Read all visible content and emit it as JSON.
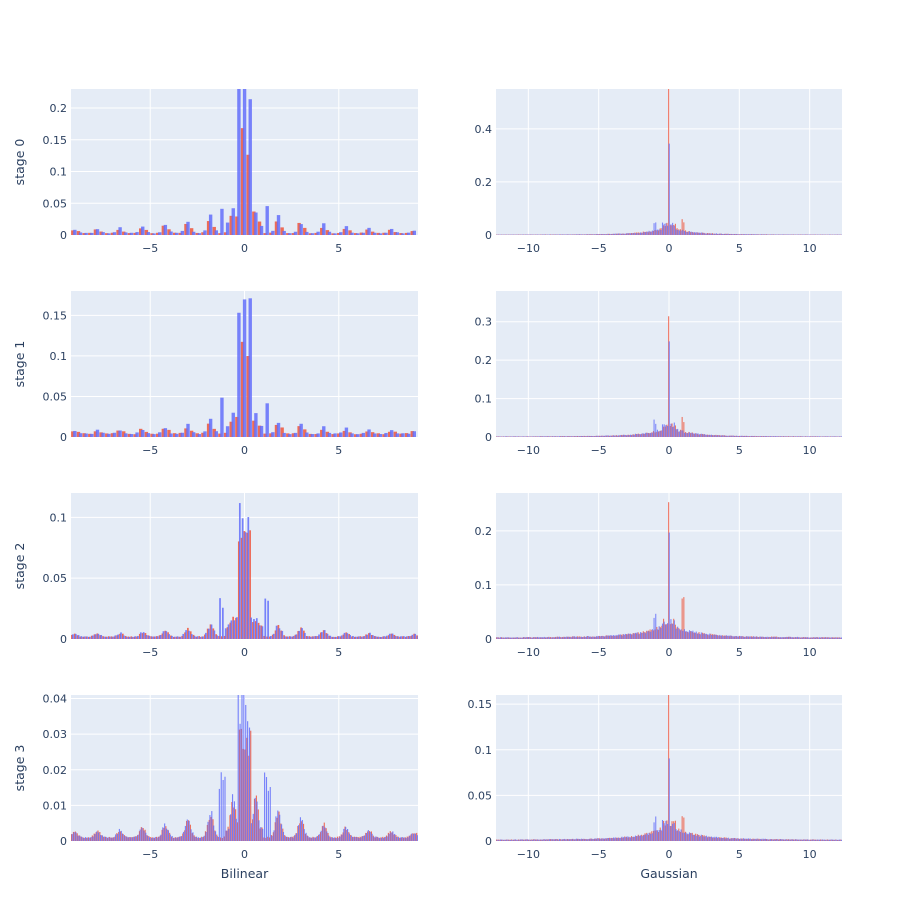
{
  "colors": {
    "series_a": "#EF553B",
    "series_b": "#636EFA",
    "plot_bg": "#E5ECF6",
    "grid": "#FFFFFF",
    "text": "#2a3f5f"
  },
  "chart_data": [
    {
      "type": "bar",
      "row_label": "stage 0",
      "xlabel": "",
      "xlim": [
        -9.2,
        9.2
      ],
      "ylim": [
        0,
        0.23
      ],
      "xticks": [
        -5,
        0,
        5
      ],
      "yticks": [
        0,
        0.05,
        0.1,
        0.15,
        0.2
      ],
      "ytick_labels": [
        "0",
        "0.05",
        "0.1",
        "0.15",
        "0.2"
      ],
      "bin_width": 0.3,
      "peak_a": 0.145,
      "peak_b": 0.218,
      "peak_b2": 0.215,
      "floor": 0.003,
      "spike_a": 0.055,
      "spike_b": 0.045
    },
    {
      "type": "bar",
      "row_label": "",
      "xlabel": "",
      "xlim": [
        -12.3,
        12.3
      ],
      "ylim": [
        0,
        0.55
      ],
      "xticks": [
        -10,
        -5,
        0,
        5,
        10
      ],
      "yticks": [
        0,
        0.2,
        0.4
      ],
      "ytick_labels": [
        "0",
        "0.2",
        "0.4"
      ],
      "bin_width": 0.12,
      "peak_a": 0.52,
      "peak_b": 0.43,
      "floor": 0.001,
      "spike_a": 0.055,
      "spike_b": 0.05
    },
    {
      "type": "bar",
      "row_label": "stage 1",
      "xlabel": "",
      "xlim": [
        -9.2,
        9.2
      ],
      "ylim": [
        0,
        0.18
      ],
      "xticks": [
        -5,
        0,
        5
      ],
      "yticks": [
        0,
        0.05,
        0.1,
        0.15
      ],
      "ytick_labels": [
        "0",
        "0.05",
        "0.1",
        "0.15"
      ],
      "bin_width": 0.3,
      "peak_a": 0.12,
      "peak_b": 0.172,
      "peak_b2": 0.157,
      "floor": 0.004,
      "spike_a": 0.035,
      "spike_b": 0.045
    },
    {
      "type": "bar",
      "row_label": "",
      "xlabel": "",
      "xlim": [
        -12.3,
        12.3
      ],
      "ylim": [
        0,
        0.38
      ],
      "xticks": [
        -10,
        -5,
        0,
        5,
        10
      ],
      "yticks": [
        0,
        0.1,
        0.2,
        0.3
      ],
      "ytick_labels": [
        "0",
        "0.1",
        "0.2",
        "0.3"
      ],
      "bin_width": 0.12,
      "peak_a": 0.36,
      "peak_b": 0.29,
      "floor": 0.001,
      "spike_a": 0.045,
      "spike_b": 0.04
    },
    {
      "type": "bar",
      "row_label": "stage 2",
      "xlabel": "",
      "xlim": [
        -9.2,
        9.2
      ],
      "ylim": [
        0,
        0.12
      ],
      "xticks": [
        -5,
        0,
        5
      ],
      "yticks": [
        0,
        0.05,
        0.1
      ],
      "ytick_labels": [
        "0",
        "0.05",
        "0.1"
      ],
      "bin_width": 0.15,
      "peak_a": 0.085,
      "peak_b": 0.113,
      "peak_b2": 0.095,
      "floor": 0.002,
      "spike_a": 0.02,
      "spike_b": 0.03
    },
    {
      "type": "bar",
      "row_label": "",
      "xlabel": "",
      "xlim": [
        -12.3,
        12.3
      ],
      "ylim": [
        0,
        0.27
      ],
      "xticks": [
        -10,
        -5,
        0,
        5,
        10
      ],
      "yticks": [
        0,
        0.1,
        0.2
      ],
      "ytick_labels": [
        "0",
        "0.1",
        "0.2"
      ],
      "bin_width": 0.12,
      "peak_a": 0.26,
      "peak_b": 0.215,
      "floor": 0.002,
      "spike_a": 0.09,
      "spike_b": 0.04
    },
    {
      "type": "bar",
      "row_label": "stage 3",
      "xlabel": "Bilinear",
      "xlim": [
        -9.2,
        9.2
      ],
      "ylim": [
        0,
        0.041
      ],
      "xticks": [
        -5,
        0,
        5
      ],
      "yticks": [
        0,
        0.01,
        0.02,
        0.03,
        0.04
      ],
      "ytick_labels": [
        "0",
        "0.01",
        "0.02",
        "0.03",
        "0.04"
      ],
      "bin_width": 0.1,
      "peak_a": 0.028,
      "peak_b": 0.039,
      "peak_b2": 0.038,
      "floor": 0.001,
      "spike_a": 0.015,
      "spike_b": 0.0165
    },
    {
      "type": "bar",
      "row_label": "",
      "xlabel": "Gaussian",
      "xlim": [
        -12.3,
        12.3
      ],
      "ylim": [
        0,
        0.16
      ],
      "xticks": [
        -10,
        -5,
        0,
        5,
        10
      ],
      "yticks": [
        0,
        0.05,
        0.1,
        0.15
      ],
      "ytick_labels": [
        "0",
        "0.05",
        "0.1",
        "0.15"
      ],
      "bin_width": 0.12,
      "peak_a": 0.153,
      "peak_b": 0.093,
      "floor": 0.001,
      "spike_a": 0.03,
      "spike_b": 0.025
    }
  ]
}
